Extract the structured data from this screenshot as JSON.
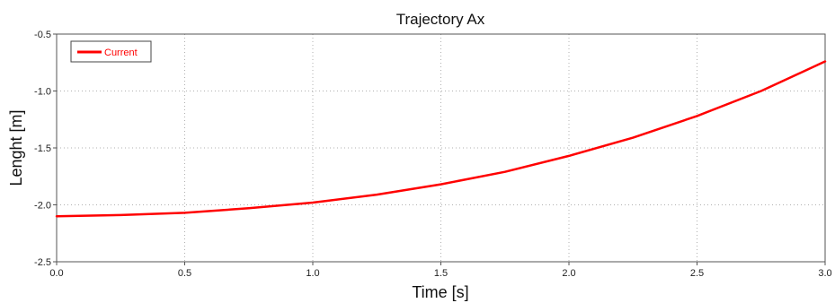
{
  "chart_data": {
    "type": "line",
    "title": "Trajectory Ax",
    "xlabel": "Time [s]",
    "ylabel": "Lenght [m]",
    "xlim": [
      0.0,
      3.0
    ],
    "ylim": [
      -2.5,
      -0.5
    ],
    "xticks": [
      "0.0",
      "0.5",
      "1.0",
      "1.5",
      "2.0",
      "2.5",
      "3.0"
    ],
    "yticks": [
      "-0.5",
      "-1.0",
      "-1.5",
      "-2.0",
      "-2.5"
    ],
    "grid": true,
    "legend_position": "top-left",
    "series": [
      {
        "name": "Current",
        "color": "#ff0000",
        "x": [
          0.0,
          0.25,
          0.5,
          0.75,
          1.0,
          1.25,
          1.5,
          1.75,
          2.0,
          2.25,
          2.5,
          2.75,
          3.0
        ],
        "y": [
          -2.1,
          -2.09,
          -2.07,
          -2.03,
          -1.98,
          -1.91,
          -1.82,
          -1.71,
          -1.57,
          -1.41,
          -1.22,
          -1.0,
          -0.74
        ]
      }
    ]
  }
}
